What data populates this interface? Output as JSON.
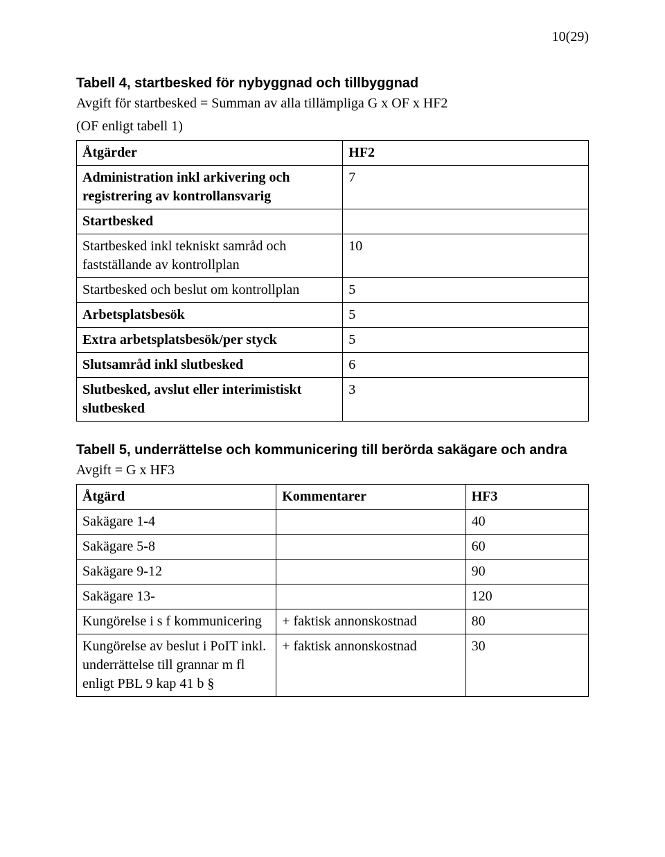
{
  "page_number": "10(29)",
  "table4": {
    "title": "Tabell 4, startbesked för nybyggnad och tillbyggnad",
    "subtitle_l1": "Avgift för startbesked = Summan av alla tillämpliga G x OF x HF2",
    "subtitle_l2": "(OF enligt tabell 1)",
    "header_left": "Åtgärder",
    "header_right": "HF2",
    "rows": [
      {
        "label": "Administration inkl arkivering och registrering av kontrollansvarig",
        "value": "7",
        "bold": true
      },
      {
        "label": "Startbesked",
        "value": "",
        "bold": true
      },
      {
        "label": "Startbesked inkl tekniskt samråd och fastställande av kontrollplan",
        "value": "10",
        "bold": false
      },
      {
        "label": "Startbesked och beslut om kontrollplan",
        "value": "5",
        "bold": false
      },
      {
        "label": "Arbetsplatsbesök",
        "value": "5",
        "bold": true
      },
      {
        "label": "Extra arbetsplatsbesök/per styck",
        "value": "5",
        "bold": true
      },
      {
        "label": "Slutsamråd inkl slutbesked",
        "value": "6",
        "bold": true
      },
      {
        "label": "Slutbesked, avslut eller interimistiskt slutbesked",
        "value": "3",
        "bold": true
      }
    ]
  },
  "table5": {
    "title": "Tabell 5, underrättelse och kommunicering till berörda sakägare och andra",
    "subtitle": "Avgift = G x HF3",
    "header_a": "Åtgärd",
    "header_b": "Kommentarer",
    "header_c": "HF3",
    "rows": [
      {
        "a": "Sakägare 1-4",
        "b": "",
        "c": "40"
      },
      {
        "a": "Sakägare 5-8",
        "b": "",
        "c": "60"
      },
      {
        "a": "Sakägare 9-12",
        "b": "",
        "c": "90"
      },
      {
        "a": "Sakägare 13-",
        "b": "",
        "c": "120"
      },
      {
        "a": "Kungörelse i s f kommunicering",
        "b": "+ faktisk annonskostnad",
        "c": "80"
      },
      {
        "a": "Kungörelse av beslut i PoIT inkl. underrättelse till grannar m fl enligt PBL 9 kap 41 b §",
        "b": "+ faktisk annonskostnad",
        "c": "30"
      }
    ]
  },
  "colors": {
    "text": "#000000",
    "background": "#ffffff",
    "border": "#000000"
  }
}
